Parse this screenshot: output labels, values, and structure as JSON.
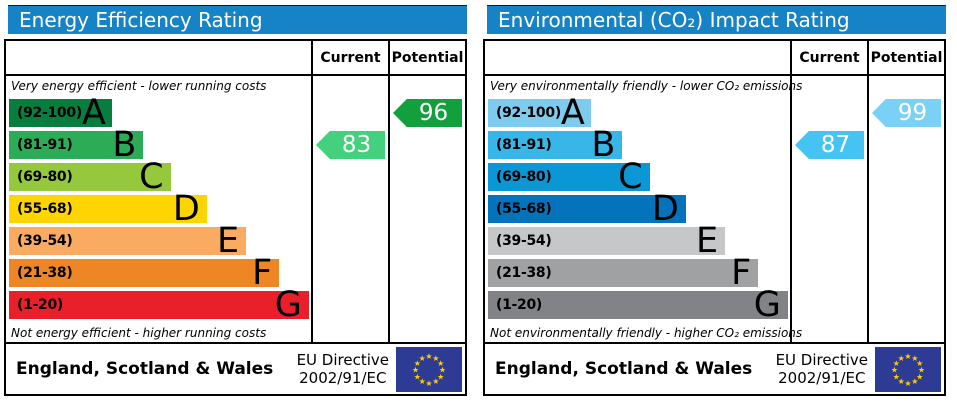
{
  "columns": {
    "current": "Current",
    "potential": "Potential"
  },
  "footer": {
    "region": "England, Scotland & Wales",
    "directive_line1": "EU Directive",
    "directive_line2": "2002/91/EC",
    "flag_icon": "eu-flag",
    "flag_bg": "#2e3b94",
    "star_color": "#ffcc00"
  },
  "chart_data": [
    {
      "type": "bar",
      "title": "Energy Efficiency Rating",
      "title_bg": "#1583c5",
      "top_caption": "Very energy efficient - lower running costs",
      "bottom_caption": "Not energy efficient - higher running costs",
      "categories": [
        "A",
        "B",
        "C",
        "D",
        "E",
        "F",
        "G"
      ],
      "ranges": [
        "(92-100)",
        "(81-91)",
        "(69-80)",
        "(55-68)",
        "(39-54)",
        "(21-38)",
        "(1-20)"
      ],
      "band_colors": [
        "#077e3d",
        "#2cac57",
        "#95c83d",
        "#fed401",
        "#f9ab62",
        "#ee8625",
        "#e9202a"
      ],
      "bar_widths_pct": [
        34,
        44.5,
        53.5,
        65.5,
        78.5,
        89.5,
        99.3
      ],
      "ylim": [
        1,
        100
      ],
      "current": {
        "label": "Current",
        "value": 83,
        "band": "B",
        "band_index": 1,
        "color": "#44d17e"
      },
      "potential": {
        "label": "Potential",
        "value": 96,
        "band": "A",
        "band_index": 0,
        "color": "#12a03c"
      }
    },
    {
      "type": "bar",
      "title": "Environmental (CO₂) Impact Rating",
      "title_bg": "#1583c5",
      "top_caption": "Very environmentally friendly - lower CO₂ emissions",
      "bottom_caption": "Not environmentally friendly - higher CO₂ emissions",
      "categories": [
        "A",
        "B",
        "C",
        "D",
        "E",
        "F",
        "G"
      ],
      "ranges": [
        "(92-100)",
        "(81-91)",
        "(69-80)",
        "(55-68)",
        "(39-54)",
        "(21-38)",
        "(1-20)"
      ],
      "band_colors": [
        "#7dccef",
        "#38b6e8",
        "#0b97d6",
        "#0473bc",
        "#c6c7c9",
        "#a0a1a3",
        "#818386"
      ],
      "bar_widths_pct": [
        34,
        44.5,
        53.5,
        65.5,
        78.5,
        89.5,
        99.3
      ],
      "ylim": [
        1,
        100
      ],
      "current": {
        "label": "Current",
        "value": 87,
        "band": "B",
        "band_index": 1,
        "color": "#45c3f2"
      },
      "potential": {
        "label": "Potential",
        "value": 99,
        "band": "A",
        "band_index": 0,
        "color": "#79d2f6"
      }
    }
  ]
}
